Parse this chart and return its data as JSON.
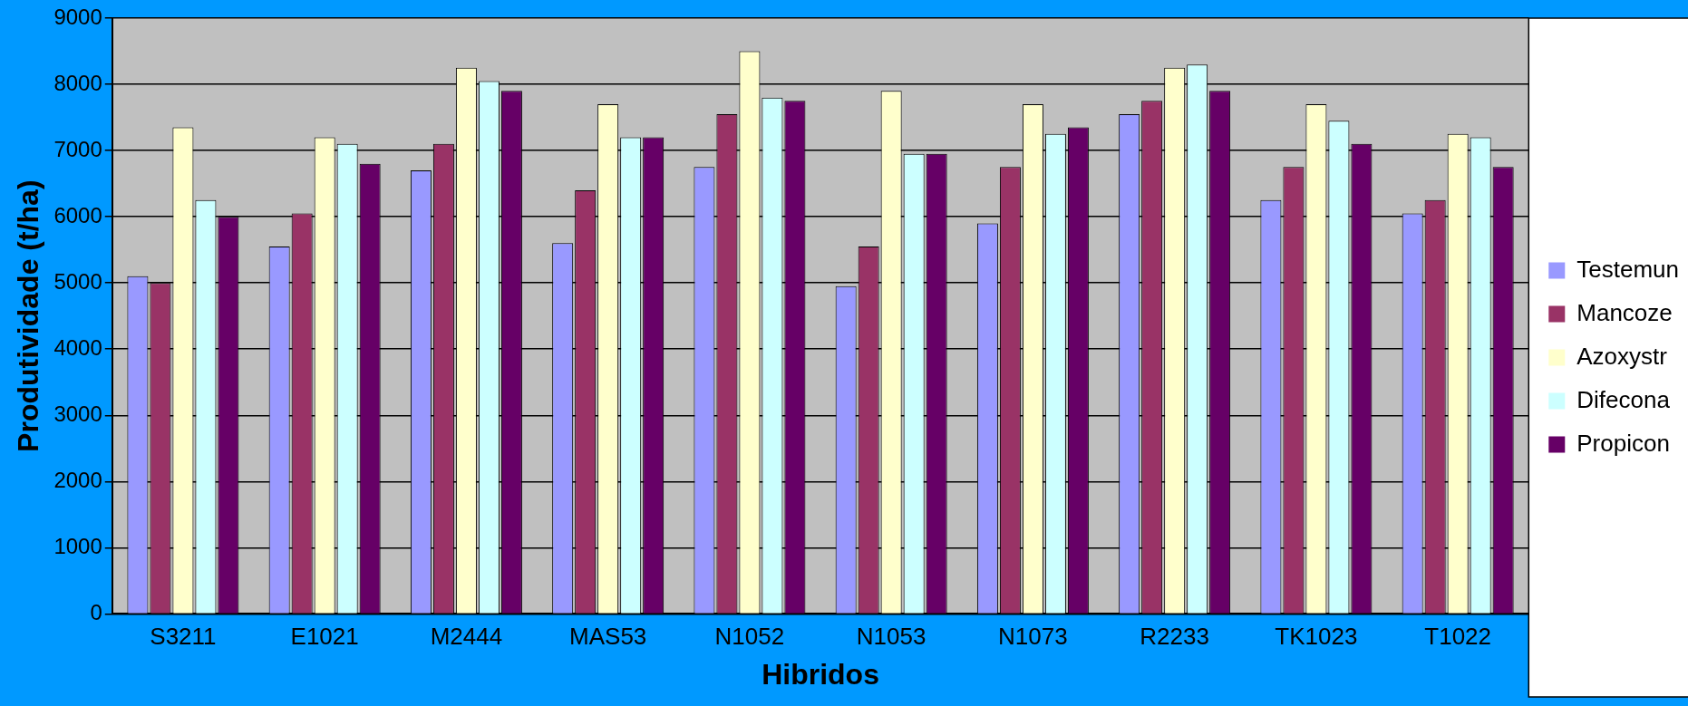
{
  "chart_data": {
    "type": "bar",
    "xlabel": "Hibridos",
    "ylabel": "Produtividade (t/ha)",
    "categories": [
      "S3211",
      "E1021",
      "M2444",
      "MAS53",
      "N1052",
      "N1053",
      "N1073",
      "R2233",
      "TK1023",
      "T1022"
    ],
    "series": [
      {
        "name": "Testemun",
        "color": "#9999ff",
        "values": [
          5100,
          5550,
          6700,
          5600,
          6750,
          4950,
          5900,
          7550,
          6250,
          6050
        ]
      },
      {
        "name": "Mancoze",
        "color": "#993366",
        "values": [
          5000,
          6050,
          7100,
          6400,
          7550,
          5550,
          6750,
          7750,
          6750,
          6250
        ]
      },
      {
        "name": "Azoxystr",
        "color": "#ffffcc",
        "values": [
          7350,
          7200,
          8250,
          7700,
          8500,
          7900,
          7700,
          8250,
          7700,
          7250
        ]
      },
      {
        "name": "Difecona",
        "color": "#ccffff",
        "values": [
          6250,
          7100,
          8050,
          7200,
          7800,
          6950,
          7250,
          8300,
          7450,
          7200
        ]
      },
      {
        "name": "Propicon",
        "color": "#660066",
        "values": [
          6000,
          6800,
          7900,
          7200,
          7750,
          6950,
          7350,
          7900,
          7100,
          6750
        ]
      }
    ],
    "ylim": [
      0,
      9000
    ],
    "yticks": [
      0,
      1000,
      2000,
      3000,
      4000,
      5000,
      6000,
      7000,
      8000,
      9000
    ],
    "grid": "y",
    "legend": "right"
  }
}
